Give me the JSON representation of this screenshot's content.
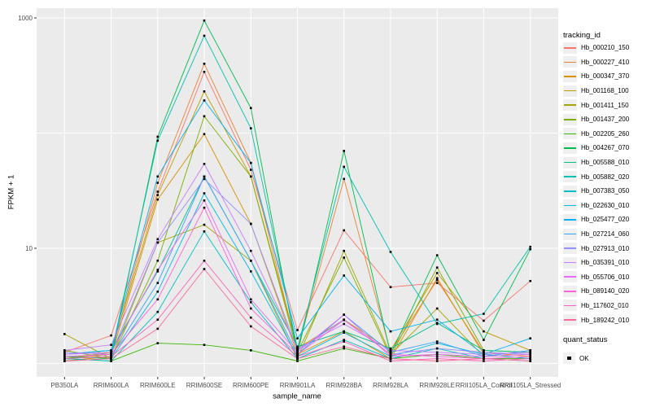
{
  "figure": {
    "background": "#ffffff",
    "panel_background": "#ebebeb",
    "gridline_color": "#ffffff",
    "tick_color": "#333333",
    "tick_label_color": "#4d4d4d",
    "point_color": "#000000"
  },
  "chart_data": {
    "type": "line",
    "title": "",
    "xlabel": "sample_name",
    "ylabel": "FPKM + 1",
    "y_scale": "log10",
    "ylim": [
      0.76,
      1200
    ],
    "grid": true,
    "y_tick_labels": [
      {
        "value": 1000,
        "label": "1000"
      },
      {
        "value": 10,
        "label": "10"
      }
    ],
    "y_gridlines": [
      1,
      10,
      100,
      1000
    ],
    "categories": [
      "PB350LA",
      "RRIM600LA",
      "RRIM600LE",
      "RRIM600SE",
      "RRIM600PE",
      "RRIM901LA",
      "RRIM928BA",
      "RRIM928LA",
      "RRIM928LE",
      "RRII105LA_Control",
      "RRII105LA_Stressed"
    ],
    "legend": {
      "title": "tracking_id",
      "position": "right"
    },
    "quant_legend": {
      "title": "quant_status",
      "items": [
        {
          "label": "OK",
          "marker": "black-square"
        }
      ]
    },
    "series": [
      {
        "name": "Hb_000210_150",
        "color": "#F8766D",
        "values": [
          1.25,
          1.75,
          31,
          340,
          48,
          1.95,
          14.3,
          4.6,
          5.0,
          2.35,
          5.2
        ]
      },
      {
        "name": "Hb_000227_410",
        "color": "#EA8331",
        "values": [
          1.1,
          1.2,
          37,
          400,
          55,
          1.3,
          40,
          1.25,
          5.3,
          1.25,
          1.15
        ]
      },
      {
        "name": "Hb_000347_370",
        "color": "#D89000",
        "values": [
          1.05,
          1.15,
          26.5,
          98,
          16.3,
          1.2,
          1.9,
          1.1,
          5.5,
          1.2,
          1.1
        ]
      },
      {
        "name": "Hb_001168_100",
        "color": "#C09B00",
        "values": [
          1.1,
          1.25,
          29,
          230,
          42,
          1.35,
          2.4,
          1.3,
          6.1,
          1.9,
          1.3
        ]
      },
      {
        "name": "Hb_001411_150",
        "color": "#A3A500",
        "values": [
          1.8,
          1.1,
          11.2,
          16,
          7.8,
          1.1,
          9.5,
          1.2,
          3.0,
          1.15,
          1.2
        ]
      },
      {
        "name": "Hb_001437_200",
        "color": "#7CAE00",
        "values": [
          1.3,
          1.1,
          7.8,
          140,
          42,
          1.25,
          8.3,
          1.15,
          6.8,
          1.3,
          1.25
        ]
      },
      {
        "name": "Hb_002205_260",
        "color": "#39B600",
        "values": [
          1.1,
          1.05,
          1.5,
          1.45,
          1.3,
          1.05,
          1.35,
          1.1,
          1.2,
          1.1,
          1.1
        ]
      },
      {
        "name": "Hb_004267_070",
        "color": "#00BB4E",
        "values": [
          1.15,
          1.1,
          93,
          950,
          165,
          1.2,
          70,
          1.2,
          8.7,
          1.6,
          9.8
        ]
      },
      {
        "name": "Hb_005588_010",
        "color": "#00C087",
        "values": [
          1.2,
          1.3,
          6.3,
          42,
          7.8,
          1.4,
          1.9,
          1.35,
          2.25,
          1.3,
          1.25
        ]
      },
      {
        "name": "Hb_005882_020",
        "color": "#00C0AF",
        "values": [
          1.15,
          1.2,
          86,
          700,
          110,
          1.35,
          51,
          9.3,
          2.2,
          2.7,
          10.3
        ]
      },
      {
        "name": "Hb_007383_050",
        "color": "#00BFC4",
        "values": [
          1.1,
          1.05,
          2.8,
          14,
          3.4,
          1.1,
          1.6,
          1.1,
          1.35,
          1.1,
          1.05
        ]
      },
      {
        "name": "Hb_022630_010",
        "color": "#00BAE0",
        "values": [
          1.05,
          1.1,
          4.2,
          30,
          6.3,
          1.15,
          1.85,
          1.15,
          1.5,
          1.2,
          1.1
        ]
      },
      {
        "name": "Hb_025477_020",
        "color": "#00B0F6",
        "values": [
          1.2,
          1.3,
          42,
          192,
          55,
          1.65,
          5.8,
          1.9,
          2.4,
          1.2,
          1.65
        ]
      },
      {
        "name": "Hb_027214_060",
        "color": "#35A2FF",
        "values": [
          1.1,
          1.15,
          5.0,
          42,
          7.8,
          1.2,
          2.65,
          1.25,
          1.55,
          1.15,
          1.3
        ]
      },
      {
        "name": "Hb_027913_010",
        "color": "#9590FF",
        "values": [
          1.25,
          1.2,
          11.2,
          40,
          16.3,
          1.3,
          2.4,
          1.2,
          1.35,
          1.25,
          1.2
        ]
      },
      {
        "name": "Hb_035391_010",
        "color": "#C77CFF",
        "values": [
          1.3,
          1.45,
          12,
          54,
          9.5,
          1.35,
          2.2,
          1.3,
          1.25,
          1.2,
          1.25
        ]
      },
      {
        "name": "Hb_055706_010",
        "color": "#E76BF3",
        "values": [
          1.2,
          1.25,
          6.5,
          26,
          3.6,
          1.25,
          2.65,
          1.15,
          1.2,
          1.15,
          1.2
        ]
      },
      {
        "name": "Hb_089140_020",
        "color": "#FA62DB",
        "values": [
          1.15,
          1.2,
          3.6,
          22.5,
          3.0,
          1.2,
          2.38,
          1.2,
          1.15,
          1.1,
          1.15
        ]
      },
      {
        "name": "Hb_117602_010",
        "color": "#FF62BC",
        "values": [
          1.1,
          1.15,
          2.4,
          7.8,
          2.5,
          1.15,
          1.55,
          1.05,
          1.1,
          1.05,
          1.1
        ]
      },
      {
        "name": "Hb_189242_010",
        "color": "#FF6A98",
        "values": [
          1.05,
          1.1,
          2.0,
          6.6,
          2.1,
          1.1,
          1.4,
          1.1,
          1.05,
          1.1,
          1.05
        ]
      }
    ]
  }
}
